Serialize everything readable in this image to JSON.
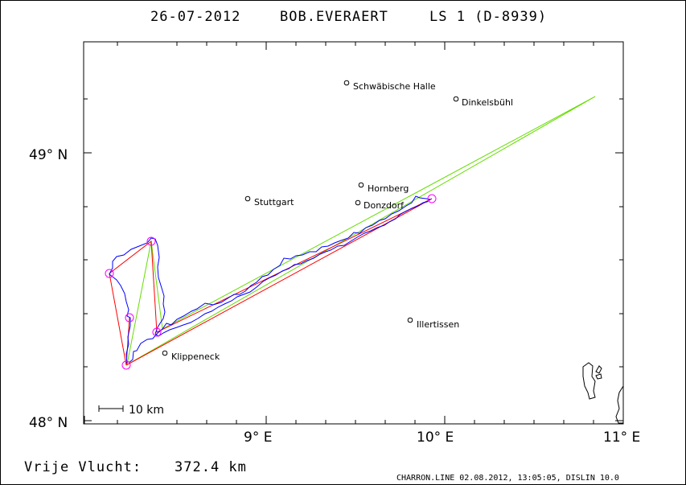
{
  "header": {
    "date": "26-07-2012",
    "pilot": "BOB.EVERAERT",
    "glider": "LS 1 (D-8939)"
  },
  "axes": {
    "lat_labels": [
      {
        "value": 49,
        "text": "49° N"
      },
      {
        "value": 48,
        "text": "48° N"
      }
    ],
    "lon_labels": [
      {
        "value": 9,
        "text": "9° E"
      },
      {
        "value": 10,
        "text": "10° E"
      },
      {
        "value": 11,
        "text": "11° E"
      }
    ]
  },
  "places": [
    {
      "name": "Schwäbische Halle"
    },
    {
      "name": "Dinkelsbühl"
    },
    {
      "name": "Hornberg"
    },
    {
      "name": "Stuttgart"
    },
    {
      "name": "Donzdorf"
    },
    {
      "name": "Illertissen"
    },
    {
      "name": "Klippeneck"
    }
  ],
  "scale": {
    "label": "10 km"
  },
  "footer": {
    "distance_label": "Vrije Vlucht:",
    "distance_value": "372.4 km",
    "credit": "CHARRON.LINE 02.08.2012, 13:05:05, DISLIN 10.0"
  },
  "colors": {
    "track": "#0000ff",
    "task": "#ff0000",
    "optimized": "#66dd00",
    "turnpoint": "#ff00ff"
  }
}
